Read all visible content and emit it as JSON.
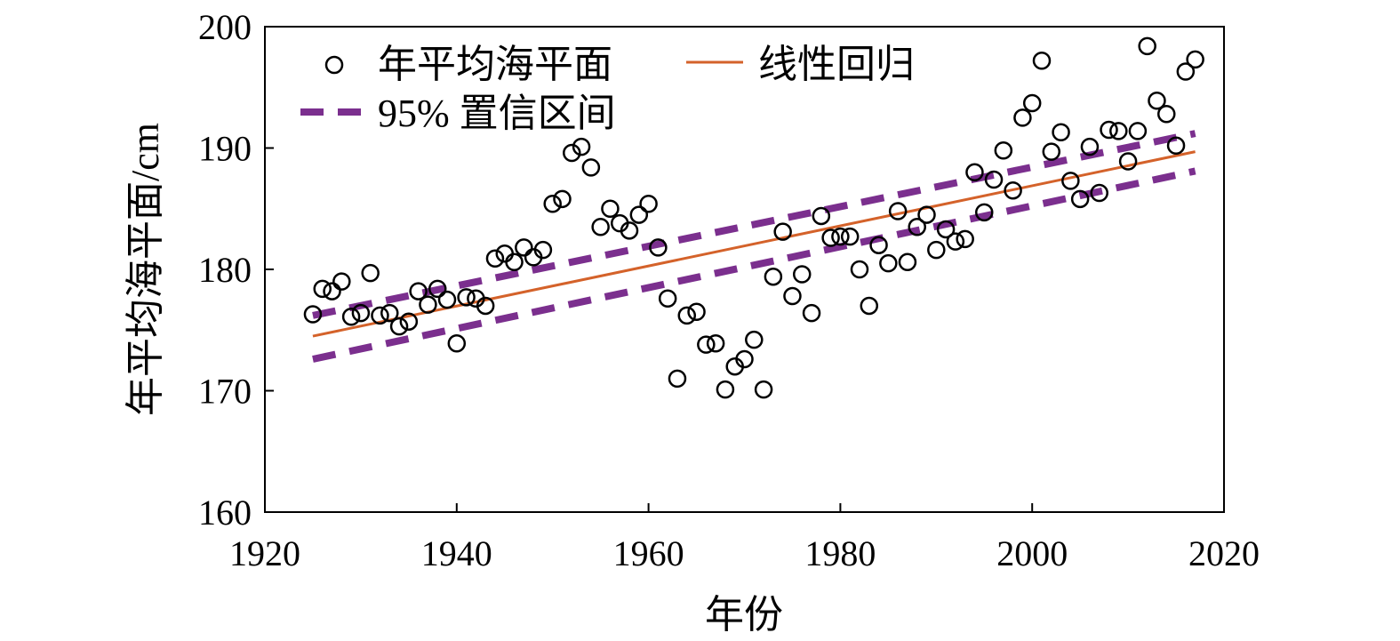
{
  "chart_data": {
    "type": "scatter",
    "xlabel": "年份",
    "ylabel": "年平均海平面/cm",
    "xlim": [
      1920,
      2020
    ],
    "ylim": [
      160,
      200
    ],
    "xticks": [
      1920,
      1940,
      1960,
      1980,
      2000,
      2020
    ],
    "yticks": [
      160,
      170,
      180,
      190,
      200
    ],
    "grid": false,
    "legend_position": "top-left",
    "legend": {
      "observed": "年平均海平面",
      "regression": "线性回归",
      "confidence": "95% 置信区间"
    },
    "colors": {
      "observed": "#000000",
      "regression": "#d4622a",
      "confidence": "#7b2f8e"
    },
    "observed": {
      "x": [
        1925,
        1926,
        1927,
        1928,
        1929,
        1930,
        1931,
        1932,
        1933,
        1934,
        1935,
        1936,
        1937,
        1938,
        1939,
        1940,
        1941,
        1942,
        1943,
        1944,
        1945,
        1946,
        1947,
        1948,
        1949,
        1950,
        1951,
        1952,
        1953,
        1954,
        1955,
        1956,
        1957,
        1958,
        1959,
        1960,
        1961,
        1962,
        1963,
        1964,
        1965,
        1966,
        1967,
        1968,
        1969,
        1970,
        1971,
        1972,
        1973,
        1974,
        1975,
        1976,
        1977,
        1978,
        1979,
        1980,
        1981,
        1982,
        1983,
        1984,
        1985,
        1986,
        1987,
        1988,
        1989,
        1990,
        1991,
        1992,
        1993,
        1994,
        1995,
        1996,
        1997,
        1998,
        1999,
        2000,
        2001,
        2002,
        2003,
        2004,
        2005,
        2006,
        2007,
        2008,
        2009,
        2010,
        2011,
        2012,
        2013,
        2014,
        2015,
        2016,
        2017
      ],
      "y": [
        176.3,
        178.4,
        178.2,
        179.0,
        176.1,
        176.4,
        179.7,
        176.2,
        176.4,
        175.3,
        175.7,
        178.2,
        177.1,
        178.4,
        177.5,
        173.9,
        177.7,
        177.6,
        177.0,
        180.9,
        181.3,
        180.6,
        181.8,
        181.0,
        181.6,
        185.4,
        185.8,
        189.6,
        190.1,
        188.4,
        183.5,
        185.0,
        183.8,
        183.2,
        184.5,
        185.4,
        181.8,
        177.6,
        171.0,
        176.2,
        176.5,
        173.8,
        173.9,
        170.1,
        172.0,
        172.6,
        174.2,
        170.1,
        179.4,
        183.1,
        177.8,
        179.6,
        176.4,
        184.4,
        182.6,
        182.7,
        182.7,
        180.0,
        177.0,
        182.0,
        180.5,
        184.8,
        180.6,
        183.5,
        184.5,
        181.6,
        183.3,
        182.3,
        182.5,
        188.0,
        184.7,
        187.4,
        189.8,
        186.5,
        192.5,
        193.7,
        197.2,
        189.7,
        191.3,
        187.3,
        185.8,
        190.1,
        186.3,
        191.5,
        191.4,
        188.9,
        191.4,
        198.4,
        193.9,
        192.8,
        190.2,
        196.3,
        197.3
      ]
    },
    "regression": {
      "x": [
        1925,
        2017
      ],
      "y": [
        174.5,
        189.7
      ]
    },
    "confidence_upper": {
      "x": [
        1925,
        2017
      ],
      "y": [
        176.2,
        191.2
      ]
    },
    "confidence_lower": {
      "x": [
        1925,
        2017
      ],
      "y": [
        172.6,
        188.1
      ]
    }
  }
}
